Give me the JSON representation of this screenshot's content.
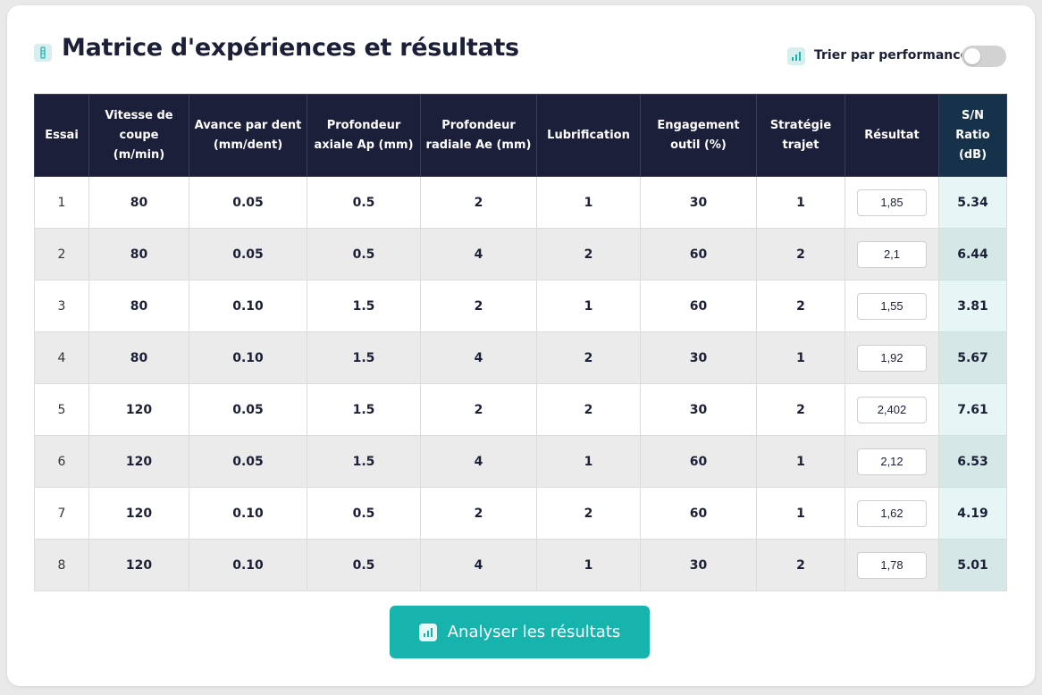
{
  "header": {
    "title": "Matrice d'expériences et résultats",
    "title_icon": "flask-icon",
    "sort_label": "Trier par performance",
    "sort_icon": "bar-chart-icon",
    "sort_toggle_on": false
  },
  "table": {
    "columns": [
      "Essai",
      "Vitesse de coupe (m/min)",
      "Avance par dent (mm/dent)",
      "Profondeur axiale Ap (mm)",
      "Profondeur radiale Ae (mm)",
      "Lubrification",
      "Engagement outil (%)",
      "Stratégie trajet",
      "Résultat",
      "S/N Ratio (dB)"
    ],
    "rows": [
      {
        "essai": "1",
        "vitesse": "80",
        "avance": "0.05",
        "ap": "0.5",
        "ae": "2",
        "lubrification": "1",
        "engagement": "30",
        "strategie": "1",
        "resultat": "1,85",
        "sn": "5.34"
      },
      {
        "essai": "2",
        "vitesse": "80",
        "avance": "0.05",
        "ap": "0.5",
        "ae": "4",
        "lubrification": "2",
        "engagement": "60",
        "strategie": "2",
        "resultat": "2,1",
        "sn": "6.44"
      },
      {
        "essai": "3",
        "vitesse": "80",
        "avance": "0.10",
        "ap": "1.5",
        "ae": "2",
        "lubrification": "1",
        "engagement": "60",
        "strategie": "2",
        "resultat": "1,55",
        "sn": "3.81"
      },
      {
        "essai": "4",
        "vitesse": "80",
        "avance": "0.10",
        "ap": "1.5",
        "ae": "4",
        "lubrification": "2",
        "engagement": "30",
        "strategie": "1",
        "resultat": "1,92",
        "sn": "5.67"
      },
      {
        "essai": "5",
        "vitesse": "120",
        "avance": "0.05",
        "ap": "1.5",
        "ae": "2",
        "lubrification": "2",
        "engagement": "30",
        "strategie": "2",
        "resultat": "2,402",
        "sn": "7.61"
      },
      {
        "essai": "6",
        "vitesse": "120",
        "avance": "0.05",
        "ap": "1.5",
        "ae": "4",
        "lubrification": "1",
        "engagement": "60",
        "strategie": "1",
        "resultat": "2,12",
        "sn": "6.53"
      },
      {
        "essai": "7",
        "vitesse": "120",
        "avance": "0.10",
        "ap": "0.5",
        "ae": "2",
        "lubrification": "2",
        "engagement": "60",
        "strategie": "1",
        "resultat": "1,62",
        "sn": "4.19"
      },
      {
        "essai": "8",
        "vitesse": "120",
        "avance": "0.10",
        "ap": "0.5",
        "ae": "4",
        "lubrification": "1",
        "engagement": "30",
        "strategie": "2",
        "resultat": "1,78",
        "sn": "5.01"
      }
    ]
  },
  "actions": {
    "analyze_label": "Analyser les résultats",
    "analyze_icon": "bar-chart-icon"
  },
  "colors": {
    "header_bg": "#1b1f3a",
    "sn_header_bg": "#16314a",
    "accent": "#17b3ad",
    "title_text": "#1b2038"
  }
}
